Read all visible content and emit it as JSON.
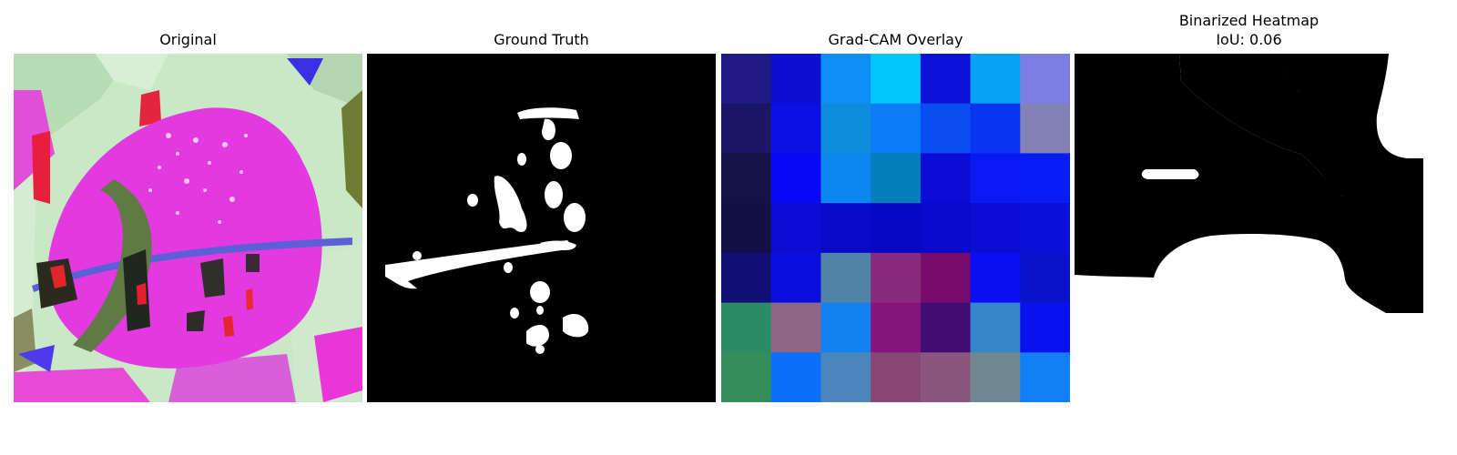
{
  "figure": {
    "panels": [
      {
        "id": "original",
        "title": "Original"
      },
      {
        "id": "ground-truth",
        "title": "Ground Truth"
      },
      {
        "id": "gradcam",
        "title": "Grad-CAM Overlay"
      },
      {
        "id": "binarized",
        "title": "Binarized Heatmap",
        "subtitle": "IoU: 0.06"
      }
    ],
    "gradcam_grid": {
      "rows": 7,
      "cols": 7,
      "colors": [
        [
          "#1f1a86",
          "#0b0fd0",
          "#0f8df5",
          "#00c8fb",
          "#0b12d6",
          "#07a1f8",
          "#7e7de1"
        ],
        [
          "#1a1664",
          "#0c11e3",
          "#0c8cdb",
          "#0a7df7",
          "#0a4ef2",
          "#0636ef",
          "#8282b7"
        ],
        [
          "#151247",
          "#0909f7",
          "#0d87f0",
          "#0380bb",
          "#0a0dd3",
          "#0a18f1",
          "#071bf3"
        ],
        [
          "#131047",
          "#0a0ed3",
          "#070ac8",
          "#0608c4",
          "#0809ca",
          "#0a0ed3",
          "#0a10d4"
        ],
        [
          "#120f74",
          "#0b0fde",
          "#5183a8",
          "#882b7e",
          "#790b6d",
          "#090ff0",
          "#0913ca"
        ],
        [
          "#2b8a68",
          "#8e6784",
          "#1382f0",
          "#86157b",
          "#420c73",
          "#3785cb",
          "#0a11ef"
        ],
        [
          "#348e5c",
          "#0c6ff9",
          "#4a86b9",
          "#884675",
          "#8b567e",
          "#6e8791",
          "#1180f4"
        ]
      ]
    }
  }
}
